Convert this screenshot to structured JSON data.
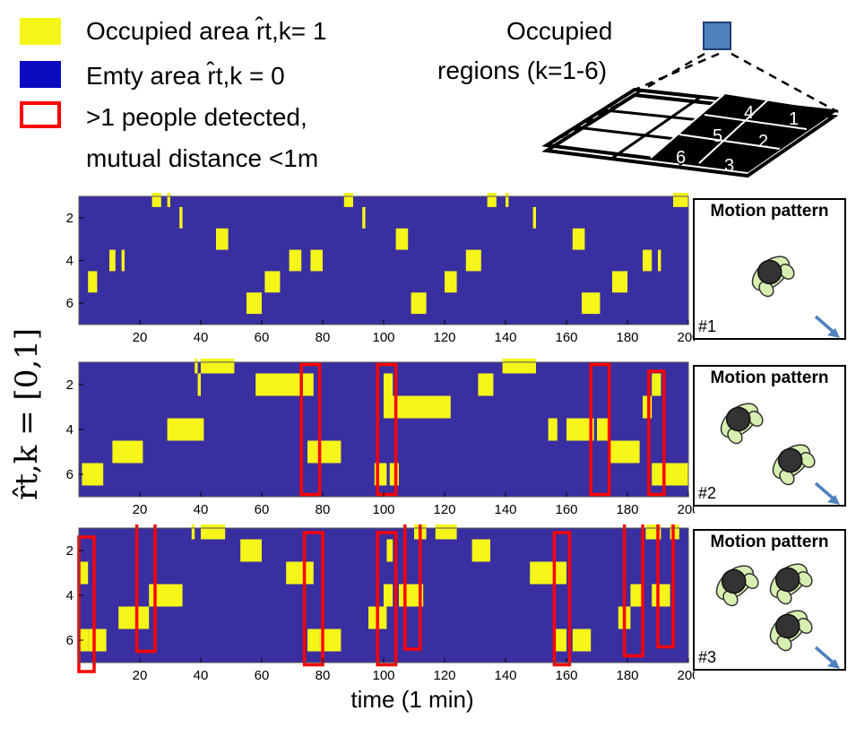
{
  "legend": {
    "occupied_label": "Occupied area r̂t,k= 1",
    "empty_label": "Emty area r̂t,k = 0",
    "detected_label_line1": ">1 people detected,",
    "detected_label_line2": "mutual distance <1m",
    "colors": {
      "occupied": "#f5f51a",
      "empty": "#3a2fa0",
      "detected": "#ff0000"
    }
  },
  "diagram": {
    "title_line1": "Occupied",
    "title_line2": "regions (k=1-6)",
    "region_numbers": [
      "4",
      "1",
      "5",
      "2",
      "6",
      "3"
    ],
    "sensor_color": "#4f81bd"
  },
  "y_axis_label": "r̂t,k = [0,1]",
  "x_axis_label": "time (1 min)",
  "panels": [
    {
      "title": "Motion pattern",
      "id": "#1",
      "people": 1
    },
    {
      "title": "Motion pattern",
      "id": "#2",
      "people": 2
    },
    {
      "title": "Motion pattern",
      "id": "#3",
      "people": 3
    }
  ],
  "chart_data": [
    {
      "type": "heatmap",
      "xlim": [
        0,
        200
      ],
      "ylim": [
        1,
        7
      ],
      "xticks": [
        20,
        40,
        60,
        80,
        100,
        120,
        140,
        160,
        180,
        200
      ],
      "yticks": [
        2,
        4,
        6
      ],
      "colors": {
        "occupied": "#f5f51a",
        "empty": "#3a2fa0"
      },
      "cells": [
        {
          "x0": 24,
          "x1": 27,
          "k": 1
        },
        {
          "x0": 29,
          "x1": 30,
          "k": 1
        },
        {
          "x0": 33,
          "x1": 34,
          "k": 2
        },
        {
          "x0": 45,
          "x1": 49,
          "k": 3
        },
        {
          "x0": 10,
          "x1": 12,
          "k": 4
        },
        {
          "x0": 14,
          "x1": 15,
          "k": 4
        },
        {
          "x0": 3,
          "x1": 6,
          "k": 5
        },
        {
          "x0": 55,
          "x1": 60,
          "k": 6
        },
        {
          "x0": 61,
          "x1": 66,
          "k": 5
        },
        {
          "x0": 69,
          "x1": 73,
          "k": 4
        },
        {
          "x0": 76,
          "x1": 80,
          "k": 4
        },
        {
          "x0": 87,
          "x1": 90,
          "k": 1
        },
        {
          "x0": 93,
          "x1": 94,
          "k": 2
        },
        {
          "x0": 104,
          "x1": 108,
          "k": 3
        },
        {
          "x0": 109,
          "x1": 114,
          "k": 6
        },
        {
          "x0": 120,
          "x1": 124,
          "k": 5
        },
        {
          "x0": 127,
          "x1": 132,
          "k": 4
        },
        {
          "x0": 134,
          "x1": 137,
          "k": 1
        },
        {
          "x0": 140,
          "x1": 141,
          "k": 1
        },
        {
          "x0": 149,
          "x1": 150,
          "k": 2
        },
        {
          "x0": 162,
          "x1": 166,
          "k": 3
        },
        {
          "x0": 165,
          "x1": 171,
          "k": 6
        },
        {
          "x0": 175,
          "x1": 180,
          "k": 5
        },
        {
          "x0": 185,
          "x1": 188,
          "k": 4
        },
        {
          "x0": 190,
          "x1": 191,
          "k": 4
        },
        {
          "x0": 195,
          "x1": 200,
          "k": 1
        }
      ],
      "highlight_boxes": []
    },
    {
      "type": "heatmap",
      "xlim": [
        0,
        200
      ],
      "ylim": [
        1,
        7
      ],
      "xticks": [
        20,
        40,
        60,
        80,
        100,
        120,
        140,
        160,
        180,
        200
      ],
      "yticks": [
        2,
        4,
        6
      ],
      "colors": {
        "occupied": "#f5f51a",
        "empty": "#3a2fa0"
      },
      "cells": [
        {
          "x0": 38,
          "x1": 39,
          "k": 1
        },
        {
          "x0": 40,
          "x1": 51,
          "k": 1
        },
        {
          "x0": 39,
          "x1": 40,
          "k": 2
        },
        {
          "x0": 58,
          "x1": 77,
          "k": 2
        },
        {
          "x0": 29,
          "x1": 41,
          "k": 4
        },
        {
          "x0": 11,
          "x1": 21,
          "k": 5
        },
        {
          "x0": 1,
          "x1": 8,
          "k": 6
        },
        {
          "x0": 75,
          "x1": 78,
          "k": 5
        },
        {
          "x0": 78,
          "x1": 86,
          "k": 5
        },
        {
          "x0": 97,
          "x1": 101,
          "k": 6
        },
        {
          "x0": 102,
          "x1": 105,
          "k": 6
        },
        {
          "x0": 100,
          "x1": 122,
          "k": 3
        },
        {
          "x0": 100,
          "x1": 103,
          "k": 2
        },
        {
          "x0": 131,
          "x1": 136,
          "k": 2
        },
        {
          "x0": 139,
          "x1": 150,
          "k": 1
        },
        {
          "x0": 154,
          "x1": 157,
          "k": 4
        },
        {
          "x0": 160,
          "x1": 169,
          "k": 4
        },
        {
          "x0": 170,
          "x1": 174,
          "k": 4
        },
        {
          "x0": 174,
          "x1": 184,
          "k": 5
        },
        {
          "x0": 185,
          "x1": 188,
          "k": 3
        },
        {
          "x0": 188,
          "x1": 191,
          "k": 2
        },
        {
          "x0": 188,
          "x1": 190,
          "k": 6
        },
        {
          "x0": 190,
          "x1": 200,
          "k": 6
        }
      ],
      "highlight_boxes": [
        {
          "x0": 73,
          "x1": 79,
          "k0": 1.1,
          "k1": 6.9
        },
        {
          "x0": 98,
          "x1": 104,
          "k0": 1.1,
          "k1": 6.9
        },
        {
          "x0": 168,
          "x1": 174,
          "k0": 1.1,
          "k1": 6.9
        },
        {
          "x0": 187,
          "x1": 192,
          "k0": 1.4,
          "k1": 6.9
        }
      ]
    },
    {
      "type": "heatmap",
      "xlim": [
        0,
        200
      ],
      "ylim": [
        1,
        7
      ],
      "xticks": [
        20,
        40,
        60,
        80,
        100,
        120,
        140,
        160,
        180,
        200
      ],
      "yticks": [
        2,
        4,
        6
      ],
      "colors": {
        "occupied": "#f5f51a",
        "empty": "#3a2fa0"
      },
      "cells": [
        {
          "x0": 0,
          "x1": 3,
          "k": 3
        },
        {
          "x0": 0,
          "x1": 3,
          "k": 6
        },
        {
          "x0": 3,
          "x1": 9,
          "k": 6
        },
        {
          "x0": 13,
          "x1": 19,
          "k": 5
        },
        {
          "x0": 19,
          "x1": 23,
          "k": 5
        },
        {
          "x0": 23,
          "x1": 34,
          "k": 4
        },
        {
          "x0": 37,
          "x1": 38,
          "k": 1
        },
        {
          "x0": 40,
          "x1": 48,
          "k": 1
        },
        {
          "x0": 53,
          "x1": 60,
          "k": 2
        },
        {
          "x0": 68,
          "x1": 77,
          "k": 3
        },
        {
          "x0": 75,
          "x1": 79,
          "k": 6
        },
        {
          "x0": 79,
          "x1": 86,
          "k": 6
        },
        {
          "x0": 95,
          "x1": 101,
          "k": 5
        },
        {
          "x0": 100,
          "x1": 103,
          "k": 4
        },
        {
          "x0": 105,
          "x1": 113,
          "k": 4
        },
        {
          "x0": 101,
          "x1": 103,
          "k": 2
        },
        {
          "x0": 110,
          "x1": 114,
          "k": 1
        },
        {
          "x0": 117,
          "x1": 124,
          "k": 1
        },
        {
          "x0": 129,
          "x1": 135,
          "k": 2
        },
        {
          "x0": 148,
          "x1": 160,
          "k": 3
        },
        {
          "x0": 156,
          "x1": 160,
          "k": 6
        },
        {
          "x0": 162,
          "x1": 168,
          "k": 6
        },
        {
          "x0": 177,
          "x1": 181,
          "k": 5
        },
        {
          "x0": 181,
          "x1": 185,
          "k": 4
        },
        {
          "x0": 188,
          "x1": 194,
          "k": 4
        },
        {
          "x0": 186,
          "x1": 191,
          "k": 1
        },
        {
          "x0": 194,
          "x1": 197,
          "k": 1
        }
      ],
      "highlight_boxes": [
        {
          "x0": 0,
          "x1": 5,
          "k0": 1.4,
          "k1": 7.4
        },
        {
          "x0": 19,
          "x1": 25,
          "k0": 0.3,
          "k1": 6.5
        },
        {
          "x0": 74,
          "x1": 80,
          "k0": 1.2,
          "k1": 7.1
        },
        {
          "x0": 98,
          "x1": 104,
          "k0": 1.2,
          "k1": 7.1
        },
        {
          "x0": 107,
          "x1": 112,
          "k0": 0.1,
          "k1": 6.4
        },
        {
          "x0": 156,
          "x1": 161,
          "k0": 1.2,
          "k1": 7.1
        },
        {
          "x0": 179,
          "x1": 185,
          "k0": 0.5,
          "k1": 6.7
        },
        {
          "x0": 190,
          "x1": 195,
          "k0": 0.0,
          "k1": 6.3
        }
      ]
    }
  ]
}
